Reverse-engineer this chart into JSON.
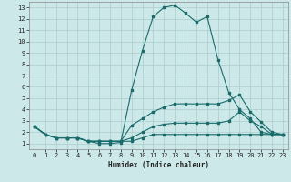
{
  "xlabel": "Humidex (Indice chaleur)",
  "bg_color": "#cce8e8",
  "line_color": "#1a6b6b",
  "grid_color": "#aacccc",
  "xlim": [
    -0.5,
    23.5
  ],
  "ylim": [
    0.5,
    13.5
  ],
  "xticks": [
    0,
    1,
    2,
    3,
    4,
    5,
    6,
    7,
    8,
    9,
    10,
    11,
    12,
    13,
    14,
    15,
    16,
    17,
    18,
    19,
    20,
    21,
    22,
    23
  ],
  "yticks": [
    1,
    2,
    3,
    4,
    5,
    6,
    7,
    8,
    9,
    10,
    11,
    12,
    13
  ],
  "curves": [
    {
      "x": [
        0,
        1,
        2,
        3,
        4,
        5,
        6,
        7,
        8,
        9,
        10,
        11,
        12,
        13,
        14,
        15,
        16,
        17,
        18,
        19,
        20,
        21,
        22,
        23
      ],
      "y": [
        2.5,
        1.8,
        1.5,
        1.5,
        1.5,
        1.2,
        1.0,
        1.0,
        1.1,
        5.7,
        9.2,
        12.2,
        13.0,
        13.2,
        12.5,
        11.7,
        12.2,
        8.4,
        5.5,
        4.0,
        3.2,
        2.0,
        1.8,
        1.8
      ]
    },
    {
      "x": [
        0,
        1,
        2,
        3,
        4,
        5,
        6,
        7,
        8,
        9,
        10,
        11,
        12,
        13,
        14,
        15,
        16,
        17,
        18,
        19,
        20,
        21,
        22,
        23
      ],
      "y": [
        2.5,
        1.8,
        1.5,
        1.5,
        1.5,
        1.2,
        1.2,
        1.2,
        1.2,
        2.6,
        3.2,
        3.8,
        4.2,
        4.5,
        4.5,
        4.5,
        4.5,
        4.5,
        4.8,
        5.3,
        3.8,
        2.9,
        2.0,
        1.8
      ]
    },
    {
      "x": [
        0,
        1,
        2,
        3,
        4,
        5,
        6,
        7,
        8,
        9,
        10,
        11,
        12,
        13,
        14,
        15,
        16,
        17,
        18,
        19,
        20,
        21,
        22,
        23
      ],
      "y": [
        2.5,
        1.8,
        1.5,
        1.5,
        1.5,
        1.2,
        1.2,
        1.2,
        1.2,
        1.5,
        2.0,
        2.5,
        2.7,
        2.8,
        2.8,
        2.8,
        2.8,
        2.8,
        3.0,
        3.8,
        3.0,
        2.5,
        1.8,
        1.8
      ]
    },
    {
      "x": [
        0,
        1,
        2,
        3,
        4,
        5,
        6,
        7,
        8,
        9,
        10,
        11,
        12,
        13,
        14,
        15,
        16,
        17,
        18,
        19,
        20,
        21,
        22,
        23
      ],
      "y": [
        2.5,
        1.8,
        1.5,
        1.5,
        1.5,
        1.2,
        1.2,
        1.2,
        1.2,
        1.2,
        1.5,
        1.8,
        1.8,
        1.8,
        1.8,
        1.8,
        1.8,
        1.8,
        1.8,
        1.8,
        1.8,
        1.8,
        1.8,
        1.8
      ]
    }
  ]
}
